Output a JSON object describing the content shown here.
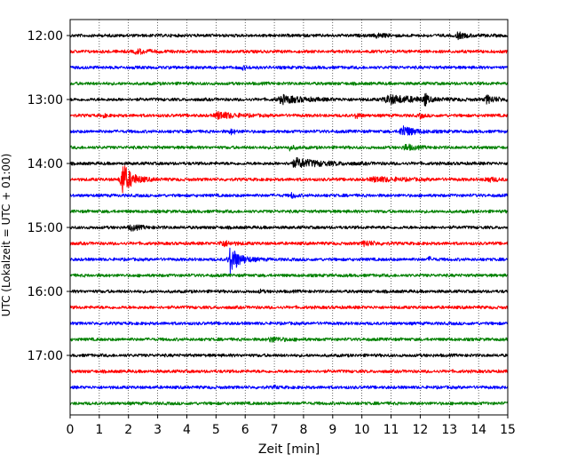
{
  "chart_data": {
    "type": "line",
    "subtype": "helicorder-seismogram",
    "xlabel": "Zeit  [min]",
    "ylabel": "UTC (Lokalzeit = UTC + 01:00)",
    "xlim": [
      0,
      15
    ],
    "x_ticks": [
      0,
      1,
      2,
      3,
      4,
      5,
      6,
      7,
      8,
      9,
      10,
      11,
      12,
      13,
      14,
      15
    ],
    "x_tick_labels": [
      "0",
      "1",
      "2",
      "3",
      "4",
      "5",
      "6",
      "7",
      "8",
      "9",
      "10",
      "11",
      "12",
      "13",
      "14",
      "15"
    ],
    "vertical_grid": "dotted, at each minute",
    "y_tick_labels": [
      "12:00",
      "13:00",
      "14:00",
      "15:00",
      "16:00",
      "17:00"
    ],
    "trace_minutes": 15,
    "trace_colors": [
      "#000000",
      "#ff0000",
      "#0000ff",
      "#008000"
    ],
    "traces": [
      {
        "start": "12:00",
        "events": [
          {
            "t": 13.3,
            "a": 0.4,
            "w": 0.25
          },
          {
            "t": 10.5,
            "a": 0.25,
            "w": 0.3
          }
        ]
      },
      {
        "start": "12:15",
        "events": [
          {
            "t": 2.3,
            "a": 0.3,
            "w": 0.35
          }
        ]
      },
      {
        "start": "12:30",
        "events": [
          {
            "t": 5.9,
            "a": 0.2,
            "w": 0.2
          }
        ]
      },
      {
        "start": "12:45",
        "events": []
      },
      {
        "start": "13:00",
        "events": [
          {
            "t": 7.3,
            "a": 0.5,
            "w": 0.7
          },
          {
            "t": 11.0,
            "a": 0.55,
            "w": 0.9
          },
          {
            "t": 12.15,
            "a": 1.0,
            "w": 0.08
          },
          {
            "t": 14.3,
            "a": 0.5,
            "w": 0.3
          }
        ]
      },
      {
        "start": "13:15",
        "events": [
          {
            "t": 5.1,
            "a": 0.5,
            "w": 0.5
          },
          {
            "t": 1.1,
            "a": 0.3,
            "w": 0.1
          },
          {
            "t": 9.8,
            "a": 0.55,
            "w": 0.1
          },
          {
            "t": 12.0,
            "a": 0.35,
            "w": 0.1
          }
        ]
      },
      {
        "start": "13:30",
        "events": [
          {
            "t": 11.4,
            "a": 0.8,
            "w": 0.35
          },
          {
            "t": 5.5,
            "a": 0.35,
            "w": 0.15
          }
        ]
      },
      {
        "start": "13:45",
        "events": [
          {
            "t": 7.5,
            "a": 0.35,
            "w": 0.15
          },
          {
            "t": 11.5,
            "a": 0.4,
            "w": 0.3
          }
        ]
      },
      {
        "start": "14:00",
        "events": [
          {
            "t": 7.8,
            "a": 0.6,
            "w": 0.8
          }
        ]
      },
      {
        "start": "14:15",
        "events": [
          {
            "t": 1.8,
            "a": 2.3,
            "w": 0.3
          },
          {
            "t": 10.5,
            "a": 0.3,
            "w": 0.8
          },
          {
            "t": 14.3,
            "a": 0.3,
            "w": 0.3
          }
        ]
      },
      {
        "start": "14:30",
        "events": [
          {
            "t": 7.6,
            "a": 0.35,
            "w": 0.12
          }
        ]
      },
      {
        "start": "14:45",
        "events": []
      },
      {
        "start": "15:00",
        "events": [
          {
            "t": 2.1,
            "a": 0.35,
            "w": 0.3
          }
        ]
      },
      {
        "start": "15:15",
        "events": [
          {
            "t": 5.2,
            "a": 0.4,
            "w": 0.3
          },
          {
            "t": 10.1,
            "a": 0.35,
            "w": 0.3
          }
        ]
      },
      {
        "start": "15:30",
        "events": [
          {
            "t": 5.5,
            "a": 1.9,
            "w": 0.3
          },
          {
            "t": 12.3,
            "a": 0.3,
            "w": 0.1
          }
        ]
      },
      {
        "start": "15:45",
        "events": []
      },
      {
        "start": "16:00",
        "events": [
          {
            "t": 6.5,
            "a": 0.2,
            "w": 0.1
          }
        ]
      },
      {
        "start": "16:15",
        "events": []
      },
      {
        "start": "16:30",
        "events": []
      },
      {
        "start": "16:45",
        "events": [
          {
            "t": 6.9,
            "a": 0.3,
            "w": 0.4
          }
        ]
      },
      {
        "start": "17:00",
        "events": []
      },
      {
        "start": "17:15",
        "events": []
      },
      {
        "start": "17:30",
        "events": [
          {
            "t": 7.0,
            "a": 0.2,
            "w": 0.1
          }
        ]
      },
      {
        "start": "17:45",
        "events": []
      }
    ]
  }
}
